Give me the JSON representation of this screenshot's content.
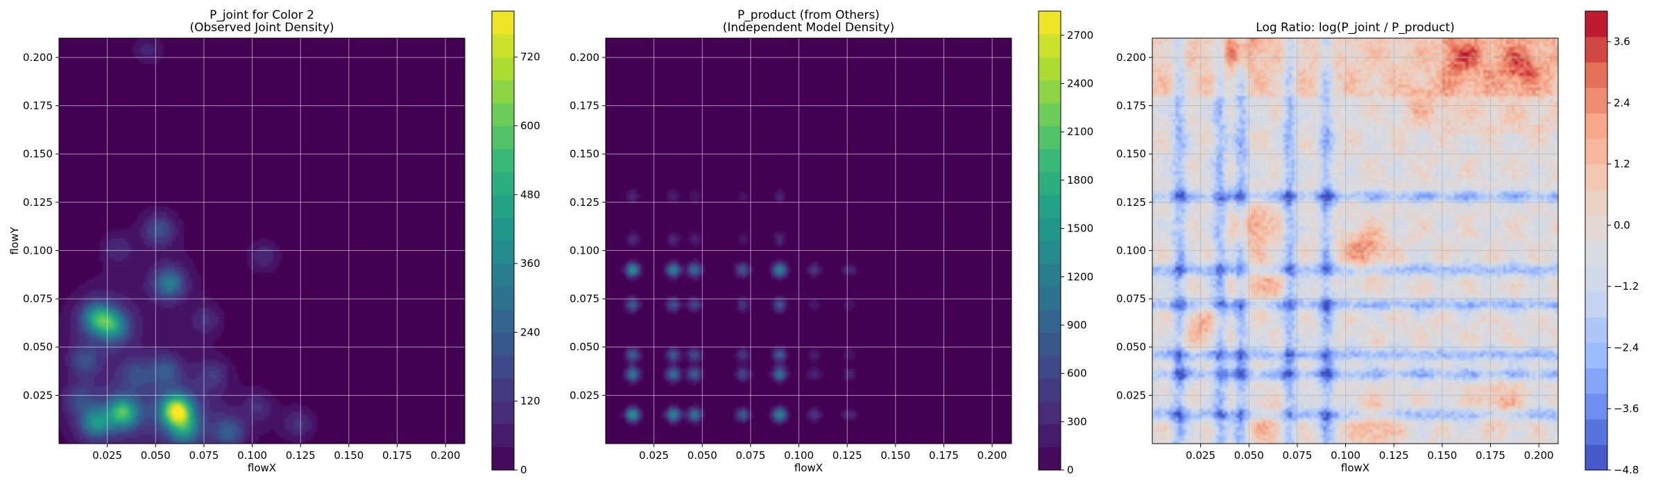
{
  "figure": {
    "panels": [
      {
        "title_lines": [
          "P_joint for Color 2",
          "(Observed Joint Density)"
        ],
        "xlabel": "flowX",
        "ylabel": "flowY"
      },
      {
        "title_lines": [
          "P_product (from Others)",
          "(Independent Model Density)"
        ],
        "xlabel": "flowX",
        "ylabel": ""
      },
      {
        "title_lines": [
          "Log Ratio: log(P_joint / P_product)"
        ],
        "xlabel": "flowX",
        "ylabel": ""
      }
    ]
  },
  "chart_data": [
    {
      "type": "heatmap",
      "title": "P_joint for Color 2\n(Observed Joint Density)",
      "xlabel": "flowX",
      "ylabel": "flowY",
      "xlim": [
        0.0,
        0.21
      ],
      "ylim": [
        0.0,
        0.21
      ],
      "xticks": [
        "0.025",
        "0.050",
        "0.075",
        "0.100",
        "0.125",
        "0.150",
        "0.175",
        "0.200"
      ],
      "yticks": [
        "0.025",
        "0.050",
        "0.075",
        "0.100",
        "0.125",
        "0.150",
        "0.175",
        "0.200"
      ],
      "grid": true,
      "colormap": "viridis",
      "background_color": "#440154",
      "colorbar": {
        "min": 0,
        "max": 800,
        "ticks": [
          "0",
          "120",
          "240",
          "360",
          "480",
          "600",
          "720"
        ]
      },
      "hotspots": [
        {
          "x": 0.061,
          "y": 0.017,
          "density": 650
        },
        {
          "x": 0.033,
          "y": 0.016,
          "density": 460
        },
        {
          "x": 0.019,
          "y": 0.011,
          "density": 330
        },
        {
          "x": 0.02,
          "y": 0.065,
          "density": 380
        },
        {
          "x": 0.028,
          "y": 0.061,
          "density": 330
        },
        {
          "x": 0.057,
          "y": 0.083,
          "density": 300
        },
        {
          "x": 0.065,
          "y": 0.007,
          "density": 280
        },
        {
          "x": 0.088,
          "y": 0.006,
          "density": 200
        },
        {
          "x": 0.052,
          "y": 0.111,
          "density": 180
        },
        {
          "x": 0.055,
          "y": 0.038,
          "density": 170
        },
        {
          "x": 0.013,
          "y": 0.043,
          "density": 150
        },
        {
          "x": 0.04,
          "y": 0.036,
          "density": 130
        },
        {
          "x": 0.08,
          "y": 0.036,
          "density": 110
        },
        {
          "x": 0.106,
          "y": 0.097,
          "density": 100
        },
        {
          "x": 0.124,
          "y": 0.01,
          "density": 110
        },
        {
          "x": 0.076,
          "y": 0.064,
          "density": 100
        },
        {
          "x": 0.03,
          "y": 0.101,
          "density": 90
        },
        {
          "x": 0.046,
          "y": 0.204,
          "density": 80
        },
        {
          "x": 0.01,
          "y": 0.023,
          "density": 120
        },
        {
          "x": 0.103,
          "y": 0.019,
          "density": 90
        }
      ]
    },
    {
      "type": "heatmap",
      "title": "P_product (from Others)\n(Independent Model Density)",
      "xlabel": "flowX",
      "ylabel": "",
      "xlim": [
        0.0,
        0.21
      ],
      "ylim": [
        0.0,
        0.21
      ],
      "xticks": [
        "0.025",
        "0.050",
        "0.075",
        "0.100",
        "0.125",
        "0.150",
        "0.175",
        "0.200"
      ],
      "yticks": [
        "0.025",
        "0.050",
        "0.075",
        "0.100",
        "0.125",
        "0.150",
        "0.175",
        "0.200"
      ],
      "grid": true,
      "colormap": "viridis",
      "background_color": "#440154",
      "colorbar": {
        "min": 0,
        "max": 2850,
        "ticks": [
          "0",
          "300",
          "600",
          "900",
          "1200",
          "1500",
          "1800",
          "2100",
          "2400",
          "2700"
        ]
      },
      "x_modes": [
        {
          "x": 0.014,
          "weight": 1.0
        },
        {
          "x": 0.035,
          "weight": 0.9
        },
        {
          "x": 0.046,
          "weight": 0.75
        },
        {
          "x": 0.071,
          "weight": 0.55
        },
        {
          "x": 0.09,
          "weight": 0.9
        },
        {
          "x": 0.108,
          "weight": 0.3
        },
        {
          "x": 0.126,
          "weight": 0.25
        }
      ],
      "y_modes": [
        {
          "y": 0.015,
          "weight": 1.0
        },
        {
          "y": 0.036,
          "weight": 0.8
        },
        {
          "y": 0.046,
          "weight": 0.6
        },
        {
          "y": 0.072,
          "weight": 0.55
        },
        {
          "y": 0.09,
          "weight": 0.95
        },
        {
          "y": 0.106,
          "weight": 0.25
        },
        {
          "y": 0.128,
          "weight": 0.2
        }
      ],
      "peak_density": 1500
    },
    {
      "type": "heatmap",
      "title": "Log Ratio: log(P_joint / P_product)",
      "xlabel": "flowX",
      "ylabel": "",
      "xlim": [
        0.0,
        0.21
      ],
      "ylim": [
        0.0,
        0.21
      ],
      "xticks": [
        "0.025",
        "0.050",
        "0.075",
        "0.100",
        "0.125",
        "0.150",
        "0.175",
        "0.200"
      ],
      "yticks": [
        "0.025",
        "0.050",
        "0.075",
        "0.100",
        "0.125",
        "0.150",
        "0.175",
        "0.200"
      ],
      "grid": true,
      "colormap": "coolwarm",
      "colorbar": {
        "min": -4.8,
        "max": 4.2,
        "ticks": [
          "−4.8",
          "−3.6",
          "−2.4",
          "−1.2",
          "0.0",
          "1.2",
          "2.4",
          "3.6"
        ]
      },
      "positive_regions": [
        {
          "x": 0.11,
          "y": 0.1,
          "value": 2.6
        },
        {
          "x": 0.052,
          "y": 0.112,
          "value": 2.4
        },
        {
          "x": 0.056,
          "y": 0.083,
          "value": 2.2
        },
        {
          "x": 0.045,
          "y": 0.205,
          "value": 2.4
        },
        {
          "x": 0.16,
          "y": 0.2,
          "value": 2.0
        },
        {
          "x": 0.19,
          "y": 0.195,
          "value": 2.0
        },
        {
          "x": 0.115,
          "y": 0.01,
          "value": 2.2
        },
        {
          "x": 0.06,
          "y": 0.01,
          "value": 1.8
        },
        {
          "x": 0.18,
          "y": 0.02,
          "value": 1.8
        },
        {
          "x": 0.026,
          "y": 0.06,
          "value": 1.8
        },
        {
          "x": 0.14,
          "y": 0.175,
          "value": 1.5
        }
      ],
      "negative_bands_x": [
        0.014,
        0.035,
        0.046,
        0.071,
        0.09
      ],
      "negative_bands_y": [
        0.015,
        0.036,
        0.046,
        0.072,
        0.09,
        0.128
      ],
      "negative_value": -2.2
    }
  ]
}
